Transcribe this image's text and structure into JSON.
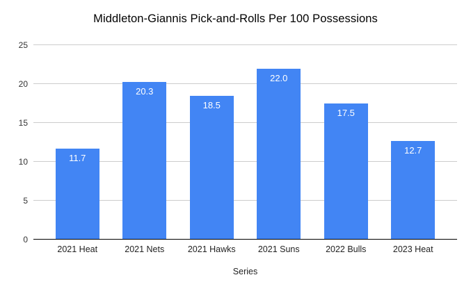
{
  "chart_data": {
    "type": "bar",
    "title": "Middleton-Giannis Pick-and-Rolls Per 100 Possessions",
    "xlabel": "Series",
    "ylabel": "",
    "categories": [
      "2021 Heat",
      "2021 Nets",
      "2021 Hawks",
      "2021 Suns",
      "2022 Bulls",
      "2023 Heat"
    ],
    "values": [
      11.7,
      20.3,
      18.5,
      22.0,
      17.5,
      12.7
    ],
    "value_labels": [
      "11.7",
      "20.3",
      "18.5",
      "22.0",
      "17.5",
      "12.7"
    ],
    "ylim": [
      0,
      25
    ],
    "yticks": [
      0,
      5,
      10,
      15,
      20,
      25
    ],
    "grid": true,
    "legend_position": "none",
    "colors": {
      "bar": "#4285f4",
      "value_label": "#ffffff",
      "gridline": "#cccccc",
      "axis_baseline": "#000000",
      "tick_label": "#333333",
      "title": "#000000"
    }
  }
}
